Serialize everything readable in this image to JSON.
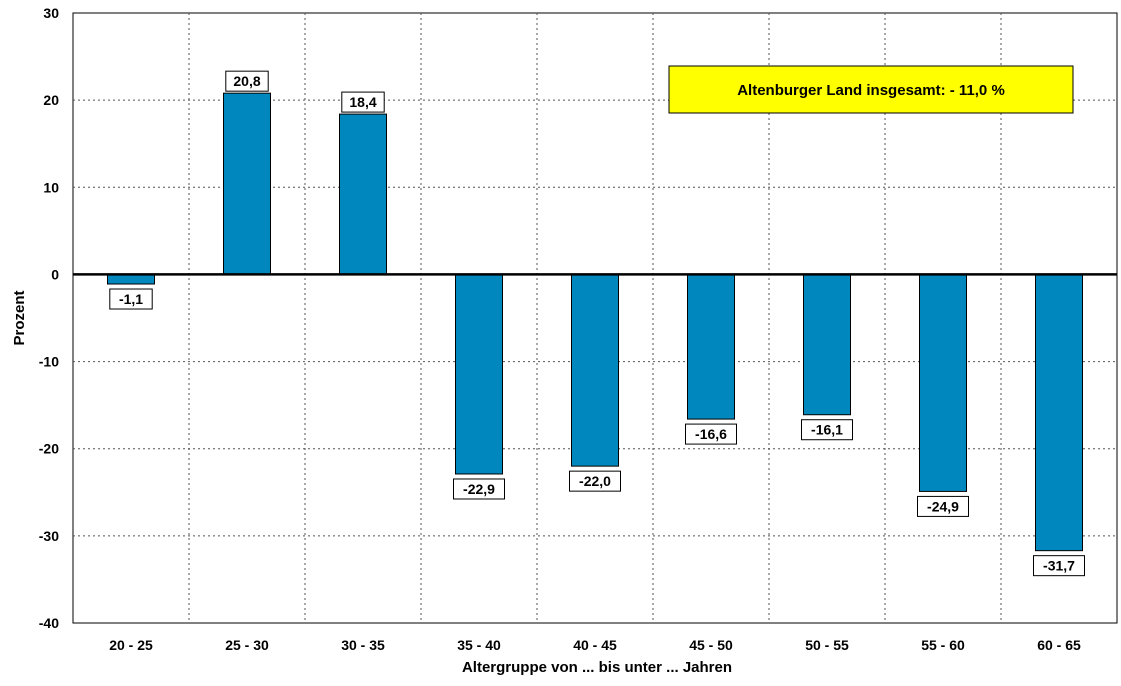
{
  "chart_data": {
    "type": "bar",
    "title": "",
    "xlabel": "Altergruppe von ... bis unter ... Jahren",
    "ylabel": "Prozent",
    "ylim": [
      -40,
      30
    ],
    "yticks": [
      30,
      20,
      10,
      0,
      -10,
      -20,
      -30,
      -40
    ],
    "grid": true,
    "categories": [
      "20 - 25",
      "25 - 30",
      "30 - 35",
      "35 - 40",
      "40 - 45",
      "45 - 50",
      "50 - 55",
      "55 - 60",
      "60 - 65"
    ],
    "values": [
      -1.1,
      20.8,
      18.4,
      -22.9,
      -22.0,
      -16.6,
      -16.1,
      -24.9,
      -31.7
    ],
    "value_labels": [
      "-1,1",
      "20,8",
      "18,4",
      "-22,9",
      "-22,0",
      "-16,6",
      "-16,1",
      "-24,9",
      "-31,7"
    ],
    "annotation": "Altenburger Land insgesamt: - 11,0 %",
    "colors": {
      "bar": "#0087BE",
      "annotation_bg": "#FFFF00",
      "grid": "#555555"
    }
  }
}
